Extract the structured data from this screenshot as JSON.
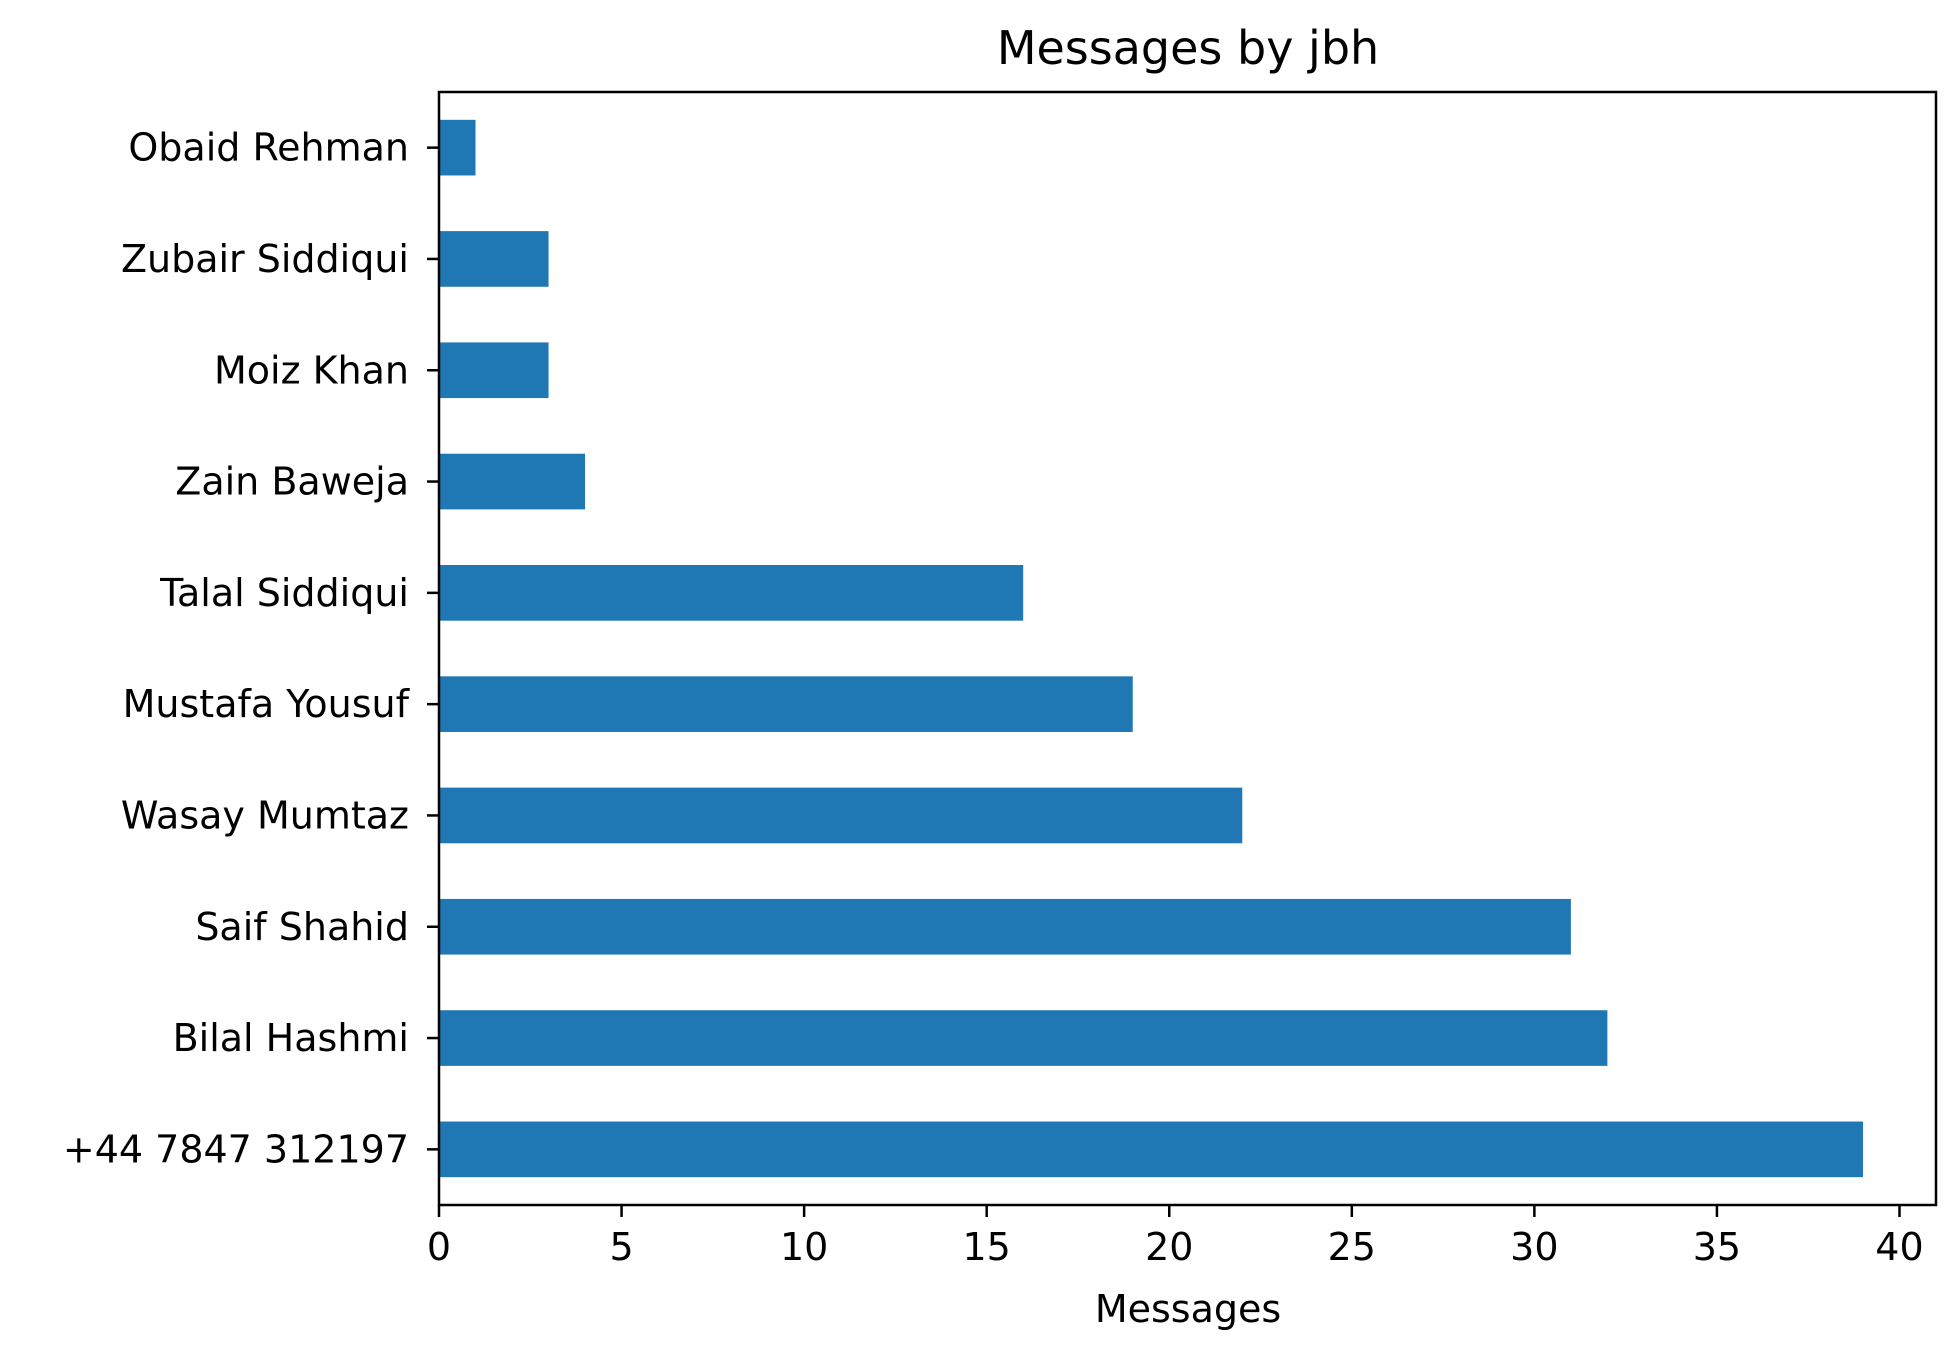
{
  "chart_data": {
    "type": "bar",
    "orientation": "horizontal",
    "title": "Messages by jbh",
    "xlabel": "Messages",
    "ylabel": "",
    "xlim": [
      0,
      41
    ],
    "x_ticks": [
      0,
      5,
      10,
      15,
      20,
      25,
      30,
      35,
      40
    ],
    "categories": [
      "Obaid Rehman",
      "Zubair Siddiqui",
      "Moiz Khan",
      "Zain Baweja",
      "Talal Siddiqui",
      "Mustafa Yousuf",
      "Wasay Mumtaz",
      "Saif Shahid",
      "Bilal Hashmi",
      "+44 7847 312197"
    ],
    "values": [
      1,
      3,
      3,
      4,
      16,
      19,
      22,
      31,
      32,
      39
    ],
    "bar_color": "#1f77b4",
    "grid": false,
    "legend": "none"
  }
}
